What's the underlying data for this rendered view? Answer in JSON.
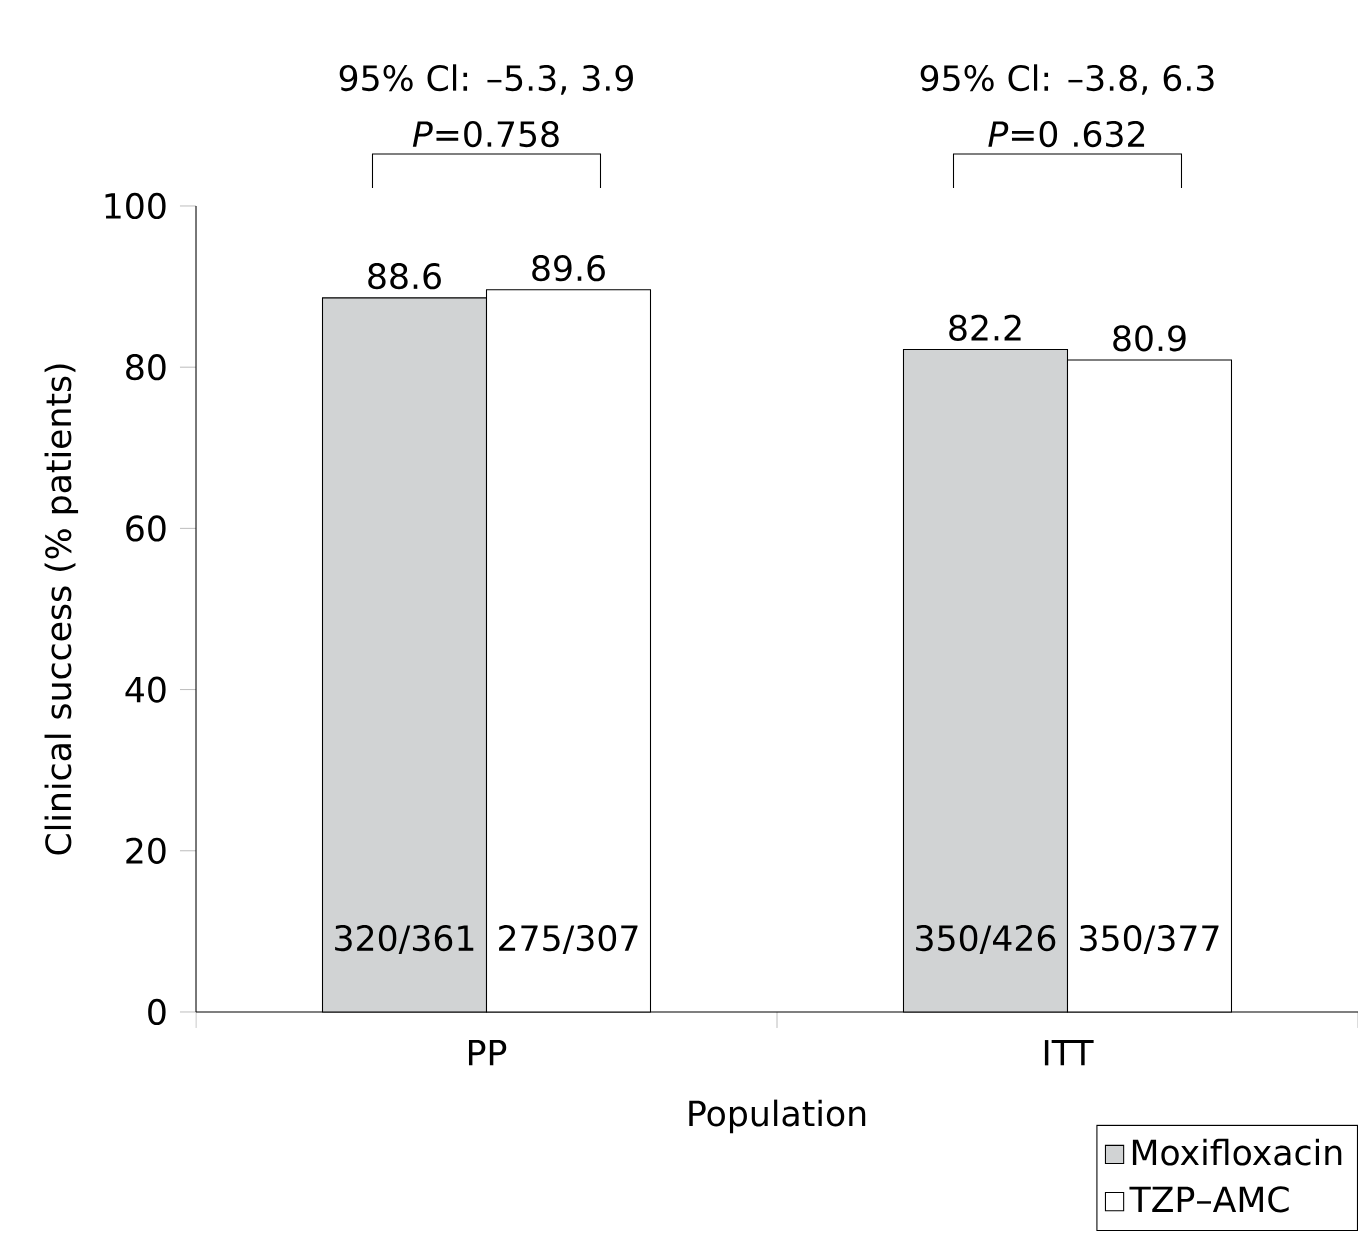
{
  "chart_data": {
    "type": "bar",
    "xlabel": "Population",
    "ylabel": "Clinical success (% patients)",
    "categories": [
      "PP",
      "ITT"
    ],
    "series": [
      {
        "name": "Moxifloxacin",
        "color": "#d1d3d4",
        "values": [
          88.6,
          82.2
        ]
      },
      {
        "name": "TZP–AMC",
        "color": "#ffffff",
        "values": [
          89.6,
          80.9
        ]
      }
    ],
    "ylim": [
      0,
      100
    ],
    "yticks": [
      0,
      20,
      40,
      60,
      80,
      100
    ],
    "data_labels": true,
    "legend": "bottom right",
    "annotations": [
      "95% Cl: –5.3, 3.9",
      "*P*=0.758",
      "95% Cl: –3.8, 6.3",
      "*P*=0 .632",
      "320/361",
      "275/307",
      "350/426",
      "350/377"
    ]
  }
}
